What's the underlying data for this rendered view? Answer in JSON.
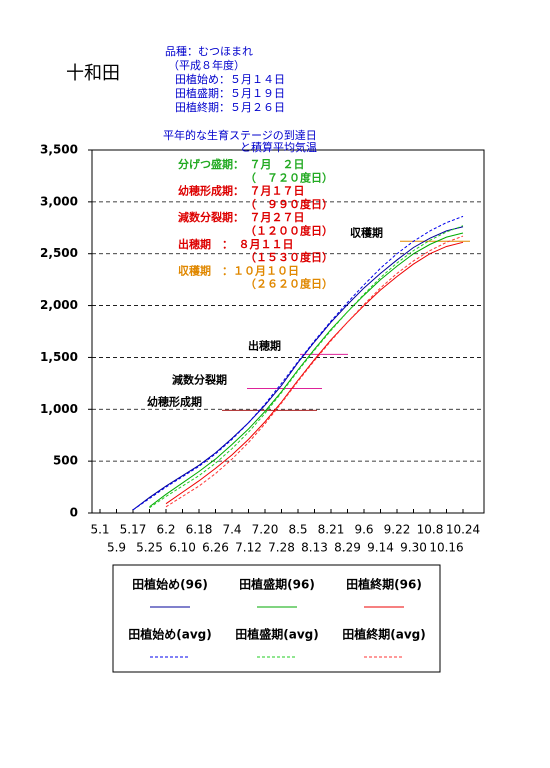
{
  "chart_data": {
    "type": "line",
    "title": "十和田",
    "info_lines": [
      "品種：むつほまれ",
      "（平成８年度）",
      "田植始め：５月１４日",
      "田植盛期：５月１９日",
      "田植終期：５月２６日"
    ],
    "info_color": "#0000cc",
    "subtitle_lines": [
      "平年的な生育ステージの到達日",
      "と積算平均気温"
    ],
    "stage_notes": [
      {
        "text": "分げつ盛期：　７月　２日",
        "color": "#22aa22"
      },
      {
        "text": "（　７２０度日）",
        "color": "#22aa22"
      },
      {
        "text": "幼穂形成期：　７月１７日",
        "color": "#dd0000"
      },
      {
        "text": "（　９９０度日）",
        "color": "#dd0000"
      },
      {
        "text": "減数分裂期：　７月２７日",
        "color": "#dd0000"
      },
      {
        "text": "（１２００度日）",
        "color": "#dd0000"
      },
      {
        "text": "出穂期　：　８月１１日",
        "color": "#dd0000"
      },
      {
        "text": "（１５３０度日）",
        "color": "#dd0000"
      },
      {
        "text": "収穫期　：１０月１０日",
        "color": "#e08800"
      },
      {
        "text": "（２６２０度日）",
        "color": "#e08800"
      }
    ],
    "stage_lines": [
      {
        "label": "幼穂形成期",
        "value": 990,
        "color": "#aa2222"
      },
      {
        "label": "減数分裂期",
        "value": 1200,
        "color": "#dd2299"
      },
      {
        "label": "出穂期",
        "value": 1530,
        "color": "#dd2299"
      },
      {
        "label": "収穫期",
        "value": 2620,
        "color": "#e08800"
      }
    ],
    "categories": [
      "5.1",
      "5.9",
      "5.17",
      "5.25",
      "6.2",
      "6.10",
      "6.18",
      "6.26",
      "7.4",
      "7.12",
      "7.20",
      "7.28",
      "8.5",
      "8.13",
      "8.21",
      "8.29",
      "9.6",
      "9.14",
      "9.22",
      "9.30",
      "10.8",
      "10.16",
      "10.24"
    ],
    "ylim": [
      0,
      3500
    ],
    "yticks": [
      0,
      500,
      {
        "value": 1000,
        "label": "1,000"
      },
      {
        "value": 1500,
        "label": "1,500"
      },
      {
        "value": 2000,
        "label": "2,000"
      },
      {
        "value": 2500,
        "label": "2,500"
      },
      {
        "value": 3000,
        "label": "3,000"
      },
      {
        "value": 3500,
        "label": "3,500"
      }
    ],
    "grid": true,
    "series": [
      {
        "name": "田植始め(96)",
        "color": "#000099",
        "dash": false,
        "values": [
          null,
          null,
          30,
          150,
          260,
          360,
          460,
          580,
          720,
          870,
          1040,
          1230,
          1450,
          1650,
          1840,
          2010,
          2170,
          2310,
          2440,
          2560,
          2650,
          2720,
          2760
        ]
      },
      {
        "name": "田植盛期(96)",
        "color": "#00aa00",
        "dash": false,
        "values": [
          null,
          null,
          null,
          60,
          180,
          290,
          400,
          520,
          660,
          810,
          980,
          1170,
          1380,
          1580,
          1770,
          1940,
          2100,
          2250,
          2380,
          2500,
          2590,
          2660,
          2700
        ]
      },
      {
        "name": "田植終期(96)",
        "color": "#ee0000",
        "dash": false,
        "values": [
          null,
          null,
          null,
          null,
          90,
          200,
          310,
          430,
          560,
          710,
          880,
          1070,
          1280,
          1480,
          1670,
          1840,
          2000,
          2150,
          2280,
          2400,
          2500,
          2570,
          2610
        ]
      },
      {
        "name": "田植始め(avg)",
        "color": "#0000ee",
        "dash": true,
        "values": [
          null,
          null,
          30,
          140,
          250,
          350,
          450,
          570,
          710,
          870,
          1050,
          1250,
          1460,
          1660,
          1850,
          2030,
          2200,
          2360,
          2500,
          2620,
          2720,
          2800,
          2860
        ]
      },
      {
        "name": "田植盛期(avg)",
        "color": "#22cc22",
        "dash": true,
        "values": [
          null,
          null,
          null,
          50,
          160,
          260,
          360,
          480,
          620,
          780,
          960,
          1160,
          1370,
          1570,
          1760,
          1940,
          2110,
          2270,
          2410,
          2530,
          2630,
          2710,
          2770
        ]
      },
      {
        "name": "田植終期(avg)",
        "color": "#ff3333",
        "dash": true,
        "values": [
          null,
          null,
          null,
          null,
          60,
          160,
          260,
          380,
          520,
          680,
          860,
          1060,
          1270,
          1470,
          1660,
          1840,
          2010,
          2170,
          2310,
          2430,
          2530,
          2610,
          2670
        ]
      }
    ]
  }
}
